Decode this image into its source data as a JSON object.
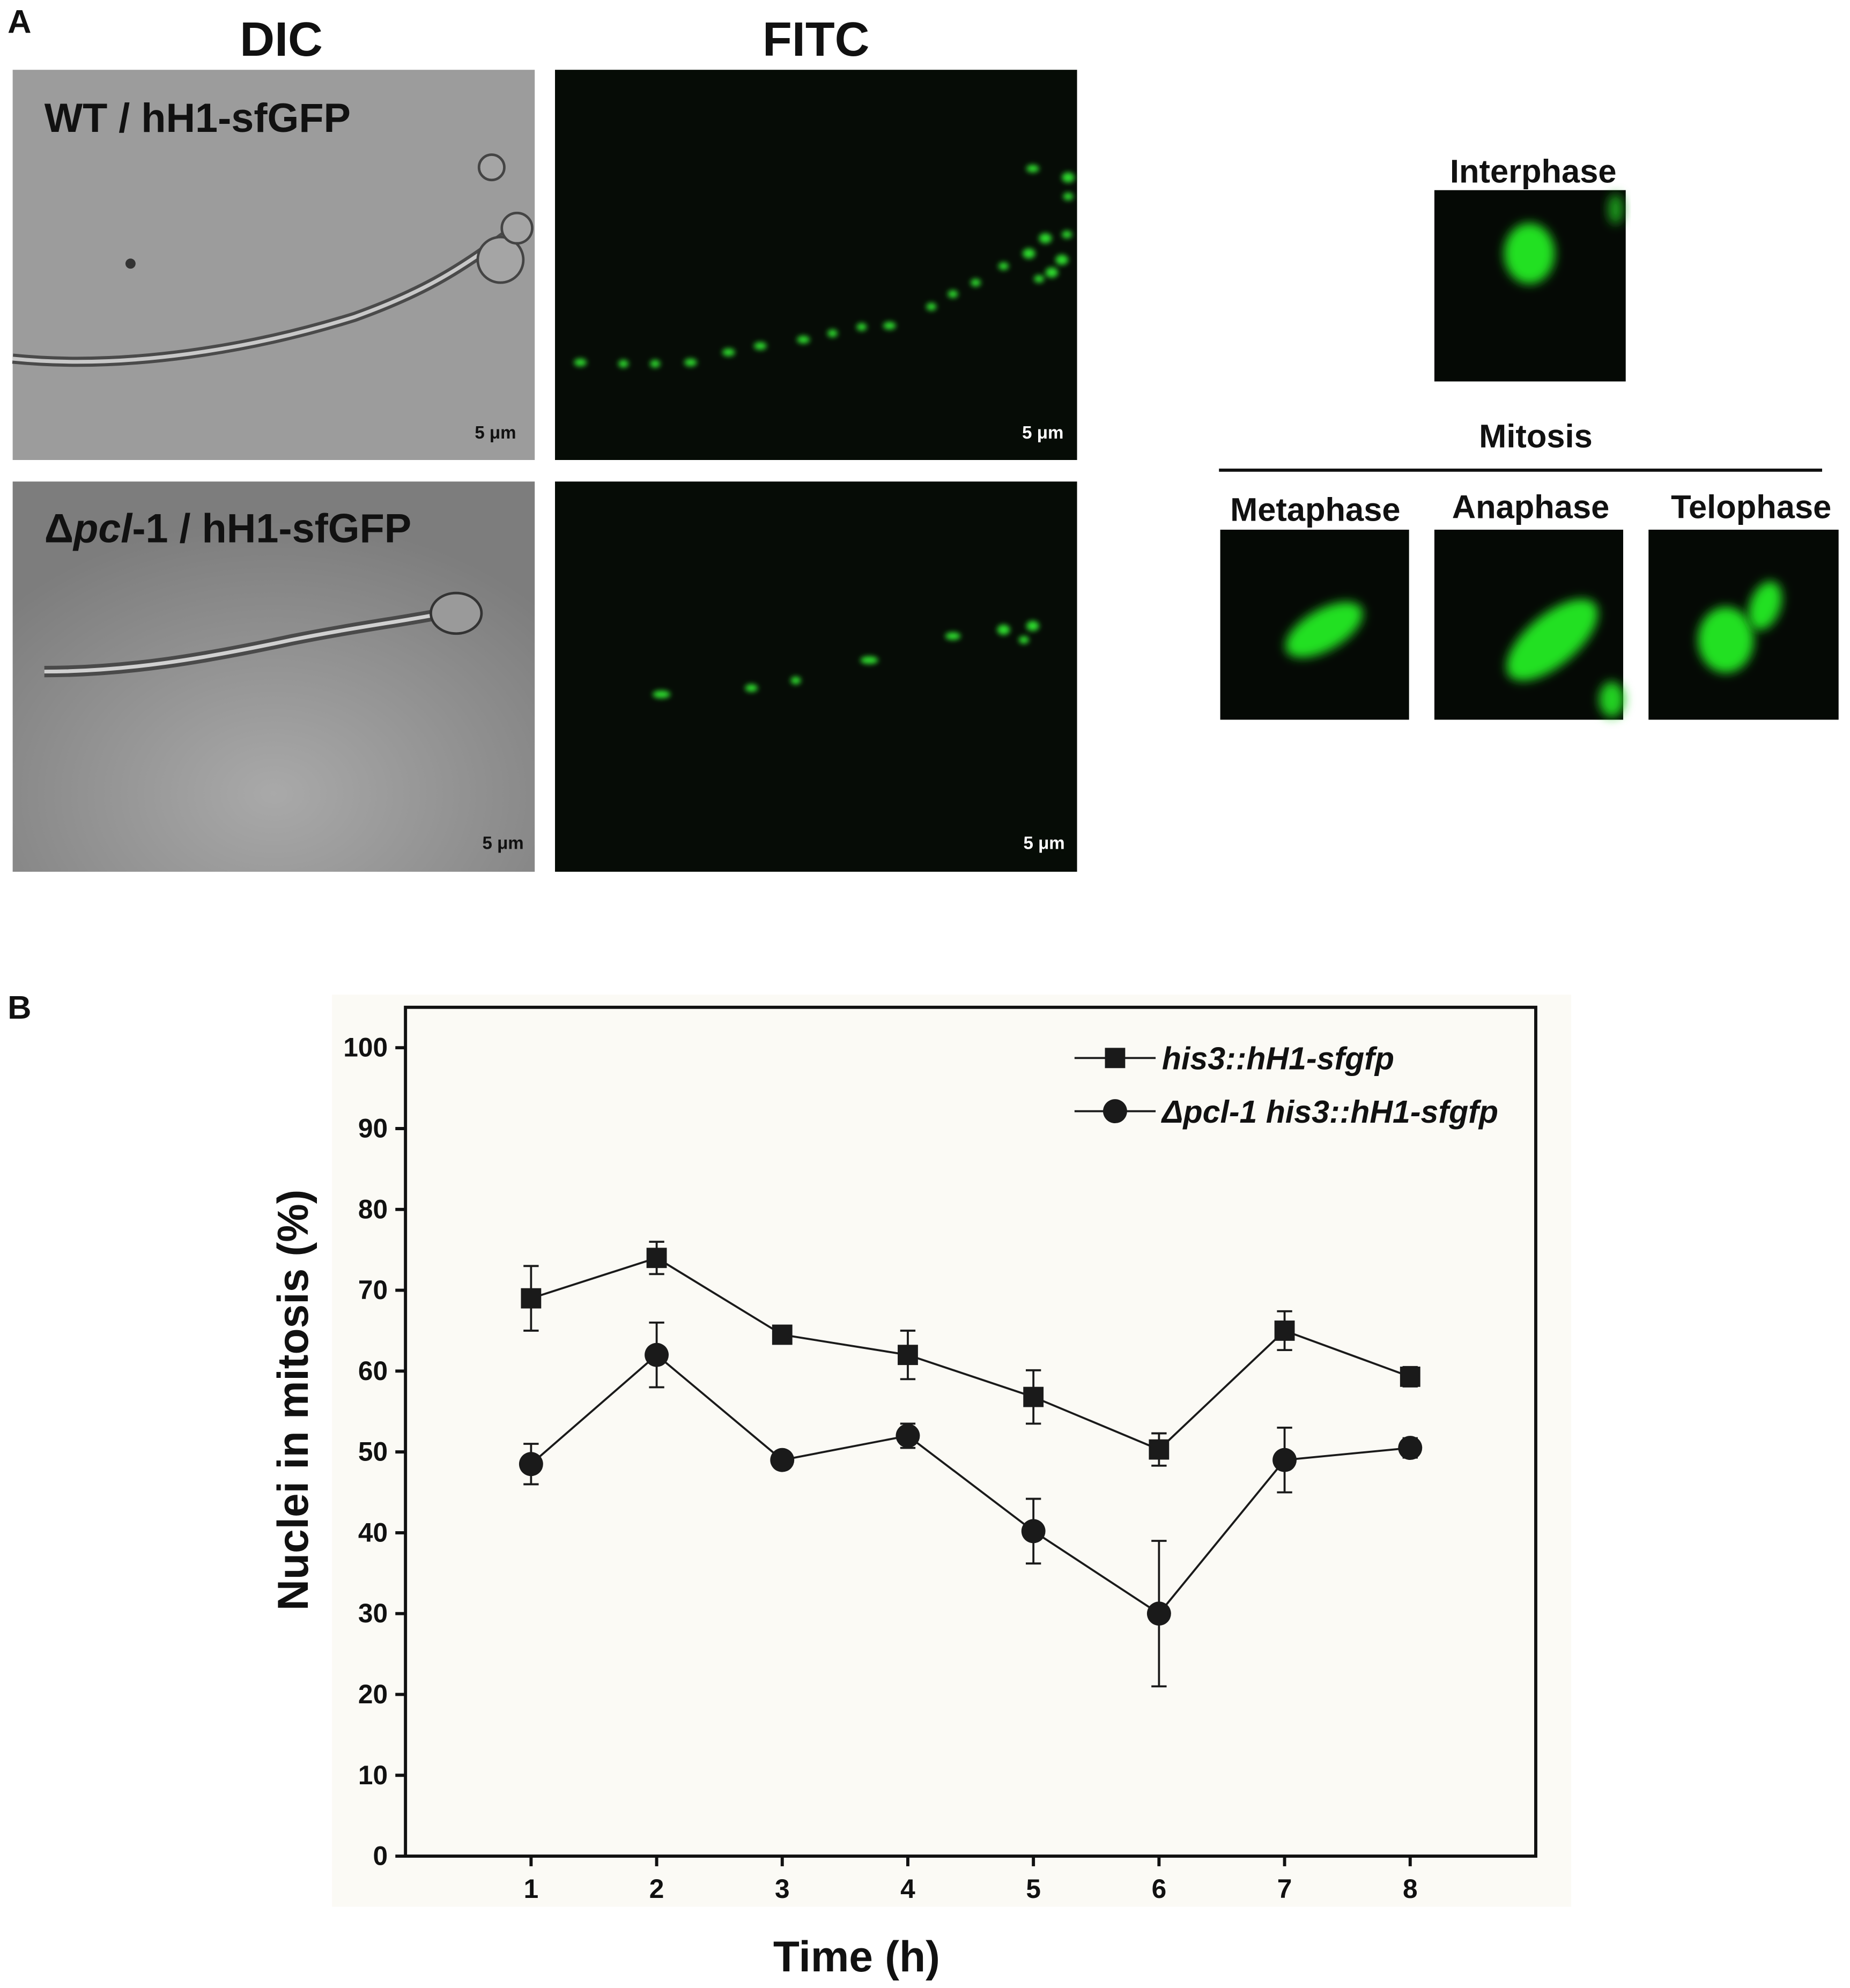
{
  "panel_a": {
    "label": "A",
    "columns": [
      "DIC",
      "FITC"
    ],
    "row_labels": [
      {
        "parts": [
          "WT / hH1-sfGFP"
        ]
      },
      {
        "parts": [
          "Δ",
          "pcl",
          "-1 / hH1-sfGFP"
        ]
      }
    ],
    "scale_bar": "5 μm",
    "interphase": "Interphase",
    "mitosis": "Mitosis",
    "mitosis_stages": [
      "Metaphase",
      "Anaphase",
      "Telophase"
    ]
  },
  "panel_b_label": "B",
  "chart_data": {
    "type": "line",
    "x_label": "Time (h)",
    "y_label": "Nuclei in mitosis (%)",
    "x": [
      1,
      2,
      3,
      4,
      5,
      6,
      7,
      8
    ],
    "xlim": [
      0,
      9
    ],
    "xticks": [
      1,
      2,
      3,
      4,
      5,
      6,
      7,
      8
    ],
    "ylim": [
      0,
      105
    ],
    "yticks": [
      0,
      10,
      20,
      30,
      40,
      50,
      60,
      70,
      80,
      90,
      100
    ],
    "series": [
      {
        "name": "his3::hH1-sfgfp",
        "color": "#1a1a1a",
        "marker": "square",
        "values": [
          69,
          74,
          64.5,
          62,
          56.8,
          50.3,
          65,
          59.3
        ],
        "errors": [
          4,
          2,
          0.5,
          3,
          3.3,
          2,
          2.4,
          1.2
        ]
      },
      {
        "name": "Δpcl-1 his3::hH1-sfgfp",
        "color": "#1a1a1a",
        "marker": "circle",
        "values": [
          48.5,
          62,
          49,
          52,
          40.2,
          30,
          49,
          50.5
        ],
        "errors": [
          2.5,
          4,
          0.5,
          1.5,
          4,
          9,
          4,
          1.2
        ]
      }
    ]
  }
}
